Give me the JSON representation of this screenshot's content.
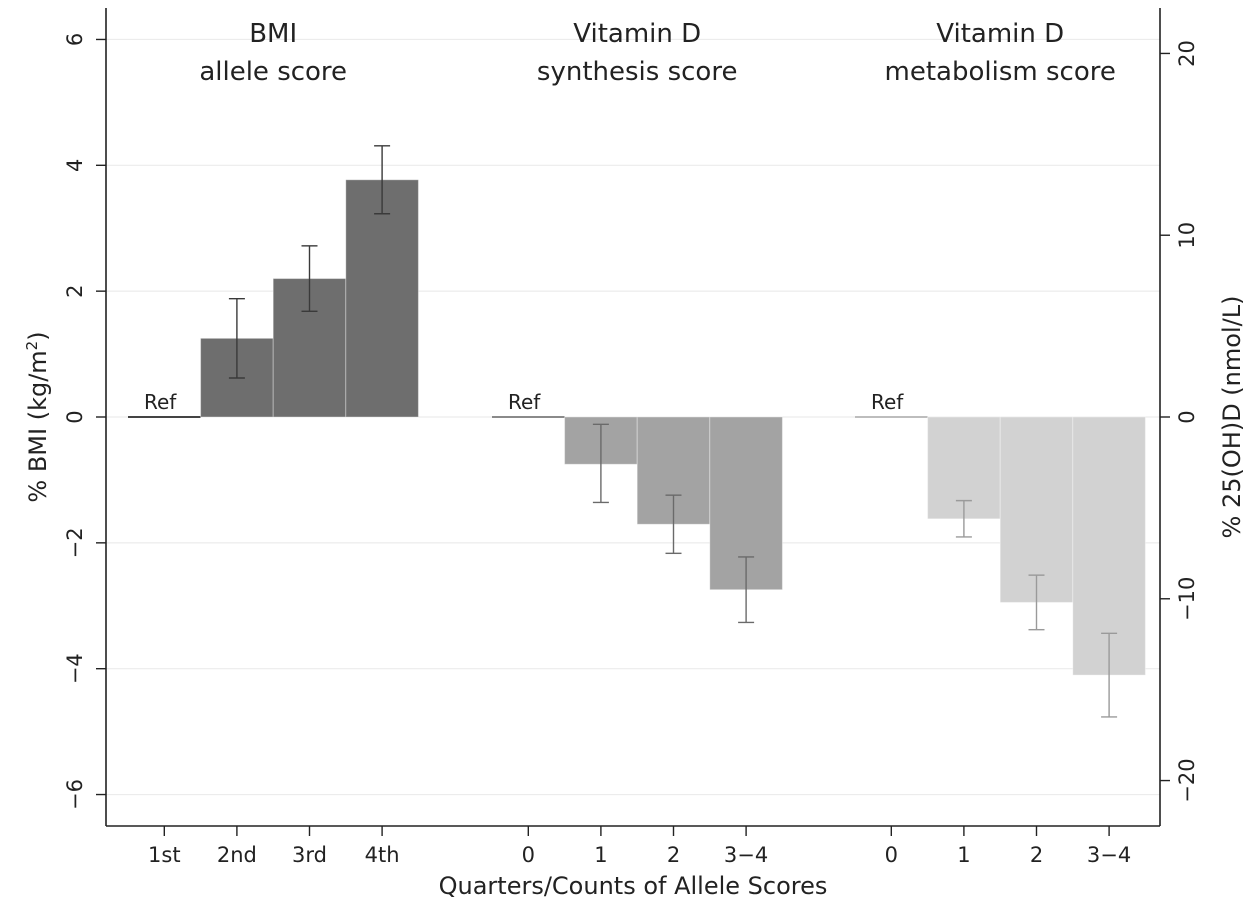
{
  "chart_data": {
    "type": "bar",
    "left_axis": {
      "label_main": "% BMI (kg/m",
      "label_sup": "2",
      "label_end": ")",
      "range": [
        -6.5,
        6.5
      ],
      "ticks": [
        6,
        4,
        2,
        0,
        -2,
        -4,
        -6
      ],
      "tick_labels": [
        "6",
        "4",
        "2",
        "0",
        "−2",
        "−4",
        "−6"
      ]
    },
    "right_axis": {
      "label": "% 25(OH)D (nmol/L)",
      "range": [
        -22.5,
        22.5
      ],
      "ticks": [
        20,
        10,
        0,
        -10,
        -20
      ],
      "tick_labels": [
        "20",
        "10",
        "0",
        "−10",
        "−20"
      ]
    },
    "xlabel": "Quarters/Counts of Allele Scores",
    "ref_label": "Ref",
    "grid": true,
    "groups": [
      {
        "title_line1": "BMI",
        "title_line2": "allele score",
        "axis": "left",
        "color": "#6e6e6e",
        "error_color": "#3a3a3a",
        "categories": [
          "1st",
          "2nd",
          "3rd",
          "4th"
        ],
        "values": [
          0,
          1.25,
          2.2,
          3.77
        ],
        "err_low": [
          null,
          0.62,
          1.68,
          3.23
        ],
        "err_high": [
          null,
          1.88,
          2.72,
          4.31
        ]
      },
      {
        "title_line1": "Vitamin D",
        "title_line2": "synthesis score",
        "axis": "right",
        "color": "#a3a3a3",
        "error_color": "#6a6a6a",
        "categories": [
          "0",
          "1",
          "2",
          "3−4"
        ],
        "values": [
          0,
          -2.6,
          -5.9,
          -9.5
        ],
        "err_low": [
          null,
          -4.7,
          -7.5,
          -11.3
        ],
        "err_high": [
          null,
          -0.4,
          -4.3,
          -7.7
        ]
      },
      {
        "title_line1": "Vitamin D",
        "title_line2": "metabolism score",
        "axis": "right",
        "color": "#d2d2d2",
        "error_color": "#9a9a9a",
        "categories": [
          "0",
          "1",
          "2",
          "3−4"
        ],
        "values": [
          0,
          -5.6,
          -10.2,
          -14.2
        ],
        "err_low": [
          null,
          -6.6,
          -11.7,
          -16.5
        ],
        "err_high": [
          null,
          -4.6,
          -8.7,
          -11.9
        ]
      }
    ]
  }
}
